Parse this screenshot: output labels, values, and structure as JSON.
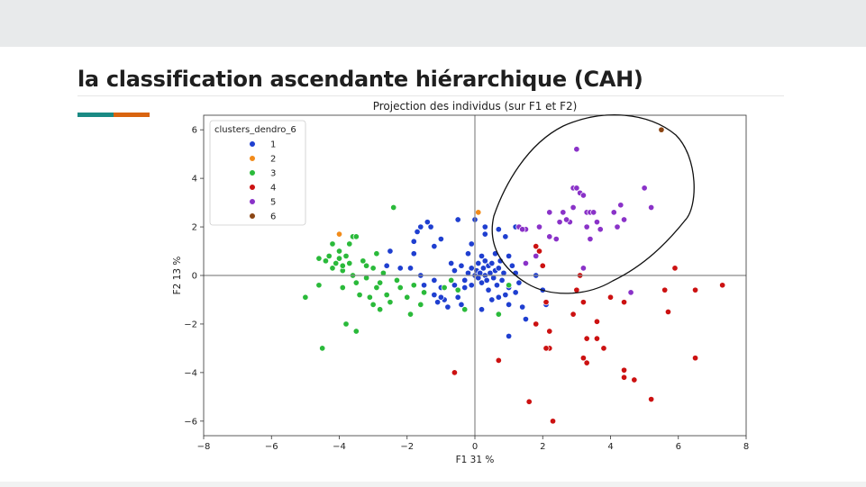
{
  "slide": {
    "title": "la classification ascendante hiérarchique (CAH)"
  },
  "chart_data": {
    "type": "scatter",
    "title": "Projection des individus (sur F1 et F2)",
    "xlabel": "F1 31 %",
    "ylabel": "F2 13 %",
    "xlim": [
      -8,
      8
    ],
    "ylim": [
      -6.6,
      6.6
    ],
    "xticks": [
      -8,
      -6,
      -4,
      -2,
      0,
      2,
      4,
      6,
      8
    ],
    "yticks": [
      -6,
      -4,
      -2,
      0,
      2,
      4,
      6
    ],
    "grid": false,
    "reference_lines": {
      "x": 0,
      "y": 0
    },
    "legend": {
      "title": "clusters_dendro_6",
      "placement": "top-left",
      "entries": [
        "1",
        "2",
        "3",
        "4",
        "5",
        "6"
      ]
    },
    "annotation": "hand-drawn loop around the cluster 5 points in the upper-right quadrant",
    "series": [
      {
        "name": "1",
        "color": "#1f3fd0",
        "points": [
          [
            -2.5,
            1.0
          ],
          [
            -2.6,
            0.4
          ],
          [
            -2.2,
            0.3
          ],
          [
            -1.9,
            0.3
          ],
          [
            -1.8,
            0.9
          ],
          [
            -1.8,
            1.4
          ],
          [
            -1.7,
            1.8
          ],
          [
            -1.6,
            2.0
          ],
          [
            -1.3,
            2.0
          ],
          [
            -1.2,
            1.2
          ],
          [
            -1.0,
            1.5
          ],
          [
            -1.6,
            0.0
          ],
          [
            -1.5,
            -0.4
          ],
          [
            -1.2,
            -0.2
          ],
          [
            -1.0,
            -0.5
          ],
          [
            -1.2,
            -0.8
          ],
          [
            -1.1,
            -1.1
          ],
          [
            -0.9,
            -1.0
          ],
          [
            -1.0,
            -0.9
          ],
          [
            -0.8,
            -1.3
          ],
          [
            -0.7,
            0.5
          ],
          [
            -0.6,
            -0.4
          ],
          [
            -0.5,
            -0.9
          ],
          [
            -0.4,
            -1.2
          ],
          [
            -0.3,
            -0.5
          ],
          [
            -0.2,
            0.1
          ],
          [
            -0.1,
            0.3
          ],
          [
            -0.2,
            0.9
          ],
          [
            -0.1,
            1.3
          ],
          [
            -0.5,
            2.3
          ],
          [
            -0.6,
            0.2
          ],
          [
            -0.4,
            0.4
          ],
          [
            -0.3,
            -0.2
          ],
          [
            -0.1,
            -0.4
          ],
          [
            0.0,
            0.0
          ],
          [
            0.05,
            0.2
          ],
          [
            0.1,
            0.5
          ],
          [
            0.1,
            -0.1
          ],
          [
            0.15,
            0.1
          ],
          [
            0.2,
            -0.3
          ],
          [
            0.2,
            0.8
          ],
          [
            0.25,
            0.3
          ],
          [
            0.3,
            0.0
          ],
          [
            0.3,
            0.6
          ],
          [
            0.35,
            -0.2
          ],
          [
            0.4,
            0.4
          ],
          [
            0.4,
            -0.6
          ],
          [
            0.45,
            0.1
          ],
          [
            0.5,
            0.5
          ],
          [
            0.55,
            -0.1
          ],
          [
            0.6,
            0.2
          ],
          [
            0.6,
            0.9
          ],
          [
            0.65,
            -0.4
          ],
          [
            0.7,
            0.3
          ],
          [
            0.75,
            0.6
          ],
          [
            0.8,
            -0.2
          ],
          [
            0.85,
            0.1
          ],
          [
            0.2,
            -1.4
          ],
          [
            0.5,
            -1.0
          ],
          [
            0.7,
            -0.9
          ],
          [
            0.9,
            -0.8
          ],
          [
            1.0,
            -1.2
          ],
          [
            0.3,
            1.7
          ],
          [
            0.7,
            1.9
          ],
          [
            0.9,
            1.6
          ],
          [
            1.0,
            0.8
          ],
          [
            1.1,
            0.4
          ],
          [
            1.2,
            0.1
          ],
          [
            1.3,
            -0.3
          ],
          [
            1.0,
            -0.5
          ],
          [
            1.2,
            -0.7
          ],
          [
            1.5,
            -1.8
          ],
          [
            1.4,
            -1.3
          ],
          [
            1.0,
            -2.5
          ],
          [
            1.5,
            0.5
          ],
          [
            1.8,
            0.0
          ],
          [
            2.0,
            -0.6
          ],
          [
            2.1,
            -1.2
          ],
          [
            0.0,
            2.3
          ],
          [
            1.2,
            2.0
          ],
          [
            -1.4,
            2.2
          ],
          [
            0.3,
            2.0
          ]
        ]
      },
      {
        "name": "2",
        "color": "#f28b1a",
        "points": [
          [
            -4.0,
            1.7
          ],
          [
            0.1,
            2.6
          ]
        ]
      },
      {
        "name": "3",
        "color": "#2aba3a",
        "points": [
          [
            -5.0,
            -0.9
          ],
          [
            -4.6,
            -0.4
          ],
          [
            -4.5,
            -3.0
          ],
          [
            -4.4,
            0.6
          ],
          [
            -4.3,
            0.8
          ],
          [
            -4.2,
            0.3
          ],
          [
            -4.1,
            0.5
          ],
          [
            -4.0,
            1.0
          ],
          [
            -4.0,
            0.7
          ],
          [
            -3.9,
            0.2
          ],
          [
            -3.9,
            -0.5
          ],
          [
            -3.8,
            0.8
          ],
          [
            -3.8,
            -2.0
          ],
          [
            -3.7,
            0.5
          ],
          [
            -3.7,
            1.3
          ],
          [
            -3.6,
            1.6
          ],
          [
            -3.6,
            0.0
          ],
          [
            -3.5,
            1.6
          ],
          [
            -3.5,
            -0.3
          ],
          [
            -3.5,
            -2.3
          ],
          [
            -3.4,
            -0.8
          ],
          [
            -3.3,
            0.6
          ],
          [
            -3.2,
            0.4
          ],
          [
            -3.2,
            -0.1
          ],
          [
            -3.1,
            -0.9
          ],
          [
            -3.0,
            -1.2
          ],
          [
            -3.0,
            0.3
          ],
          [
            -2.9,
            0.9
          ],
          [
            -2.9,
            -0.5
          ],
          [
            -2.8,
            -0.3
          ],
          [
            -2.8,
            -1.4
          ],
          [
            -2.7,
            0.1
          ],
          [
            -2.6,
            -0.8
          ],
          [
            -2.5,
            -1.1
          ],
          [
            -2.4,
            2.8
          ],
          [
            -2.3,
            -0.2
          ],
          [
            -2.2,
            -0.5
          ],
          [
            -2.0,
            -0.9
          ],
          [
            -1.9,
            -1.6
          ],
          [
            -1.8,
            -0.4
          ],
          [
            -1.6,
            -1.2
          ],
          [
            -1.5,
            -0.7
          ],
          [
            -0.9,
            -0.5
          ],
          [
            -0.7,
            -0.2
          ],
          [
            -0.5,
            -0.6
          ],
          [
            -0.3,
            -1.4
          ],
          [
            0.7,
            -1.6
          ],
          [
            1.0,
            -0.4
          ],
          [
            -4.6,
            0.7
          ],
          [
            -4.2,
            1.3
          ],
          [
            -3.9,
            0.4
          ]
        ]
      },
      {
        "name": "4",
        "color": "#cc1111",
        "points": [
          [
            1.8,
            1.2
          ],
          [
            2.0,
            0.4
          ],
          [
            1.9,
            1.0
          ],
          [
            2.1,
            -1.1
          ],
          [
            2.2,
            -2.3
          ],
          [
            2.2,
            -3.0
          ],
          [
            1.8,
            -2.0
          ],
          [
            1.6,
            -5.2
          ],
          [
            2.3,
            -6.0
          ],
          [
            0.7,
            -3.5
          ],
          [
            -0.6,
            -4.0
          ],
          [
            2.1,
            -3.0
          ],
          [
            3.0,
            -0.6
          ],
          [
            3.1,
            0.0
          ],
          [
            3.2,
            -1.1
          ],
          [
            3.3,
            -2.6
          ],
          [
            3.2,
            -3.4
          ],
          [
            3.3,
            -3.6
          ],
          [
            3.6,
            -2.6
          ],
          [
            3.8,
            -3.0
          ],
          [
            4.0,
            -0.9
          ],
          [
            4.4,
            -1.1
          ],
          [
            4.4,
            -3.9
          ],
          [
            4.4,
            -4.2
          ],
          [
            4.7,
            -4.3
          ],
          [
            5.2,
            -5.1
          ],
          [
            5.7,
            -1.5
          ],
          [
            5.6,
            -0.6
          ],
          [
            5.9,
            0.3
          ],
          [
            6.5,
            -0.6
          ],
          [
            6.5,
            -3.4
          ],
          [
            7.3,
            -0.4
          ],
          [
            2.9,
            -1.6
          ],
          [
            3.6,
            -1.9
          ]
        ]
      },
      {
        "name": "5",
        "color": "#8a32c8",
        "points": [
          [
            1.3,
            2.0
          ],
          [
            1.5,
            1.9
          ],
          [
            1.5,
            0.5
          ],
          [
            1.8,
            0.8
          ],
          [
            1.9,
            2.0
          ],
          [
            2.2,
            2.6
          ],
          [
            2.2,
            1.6
          ],
          [
            2.5,
            2.2
          ],
          [
            2.6,
            2.6
          ],
          [
            2.8,
            2.2
          ],
          [
            2.9,
            2.8
          ],
          [
            2.9,
            3.6
          ],
          [
            3.0,
            3.6
          ],
          [
            3.0,
            5.2
          ],
          [
            3.1,
            3.4
          ],
          [
            3.2,
            3.3
          ],
          [
            3.3,
            2.6
          ],
          [
            3.4,
            2.6
          ],
          [
            3.3,
            2.0
          ],
          [
            3.5,
            2.6
          ],
          [
            3.4,
            1.5
          ],
          [
            3.2,
            0.3
          ],
          [
            3.6,
            2.2
          ],
          [
            3.7,
            1.9
          ],
          [
            4.1,
            2.6
          ],
          [
            4.2,
            2.0
          ],
          [
            4.3,
            2.9
          ],
          [
            4.4,
            2.3
          ],
          [
            4.6,
            -0.7
          ],
          [
            5.0,
            3.6
          ],
          [
            5.2,
            2.8
          ],
          [
            1.4,
            1.9
          ],
          [
            2.4,
            1.5
          ],
          [
            2.7,
            2.3
          ]
        ]
      },
      {
        "name": "6",
        "color": "#8b4513",
        "points": [
          [
            5.5,
            6.0
          ]
        ]
      }
    ]
  }
}
